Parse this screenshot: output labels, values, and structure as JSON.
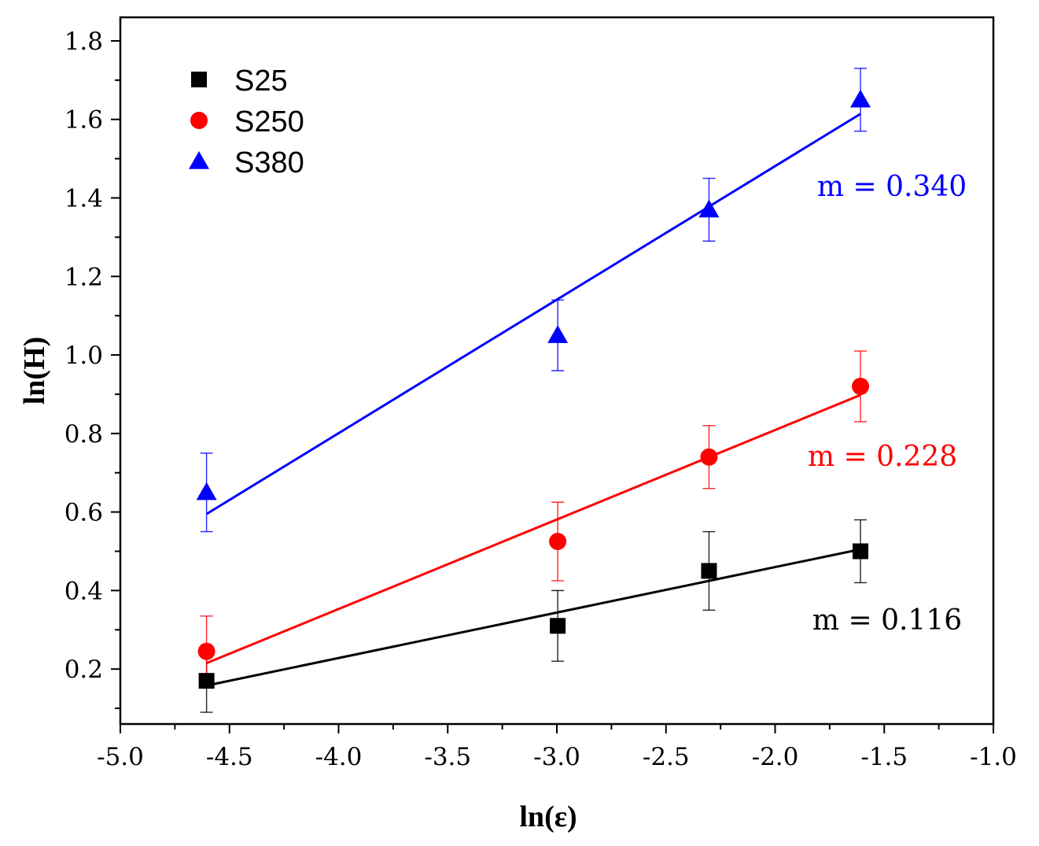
{
  "chart_data": {
    "type": "scatter",
    "title": "",
    "xlabel": "ln(ε)",
    "ylabel": "ln(H)",
    "xlim": [
      -5.0,
      -1.0
    ],
    "ylim": [
      0.06,
      1.86
    ],
    "xticks": [
      -5.0,
      -4.5,
      -4.0,
      -3.5,
      -3.0,
      -2.5,
      -2.0,
      -1.5,
      -1.0
    ],
    "xtick_labels": [
      "-5.0",
      "-4.5",
      "-4.0",
      "-3.5",
      "-3.0",
      "-2.5",
      "-2.0",
      "-1.5",
      "-1.0"
    ],
    "yticks": [
      0.2,
      0.4,
      0.6,
      0.8,
      1.0,
      1.2,
      1.4,
      1.6,
      1.8
    ],
    "ytick_labels": [
      "0.2",
      "0.4",
      "0.6",
      "0.8",
      "1.0",
      "1.2",
      "1.4",
      "1.6",
      "1.8"
    ],
    "grid": false,
    "legend_position": "top-left",
    "series": [
      {
        "name": "S25",
        "color": "#000000",
        "marker": "square",
        "x": [
          -4.605,
          -2.996,
          -2.303,
          -1.609
        ],
        "y": [
          0.17,
          0.31,
          0.45,
          0.5
        ],
        "error": [
          0.08,
          0.09,
          0.1,
          0.08
        ],
        "fit": {
          "x": [
            -4.605,
            -1.609
          ],
          "y": [
            0.158,
            0.505
          ]
        },
        "slope_label": "m = 0.116"
      },
      {
        "name": "S250",
        "color": "#ff0000",
        "marker": "circle",
        "x": [
          -4.605,
          -2.996,
          -2.303,
          -1.609
        ],
        "y": [
          0.245,
          0.525,
          0.74,
          0.92
        ],
        "error": [
          0.09,
          0.1,
          0.08,
          0.09
        ],
        "fit": {
          "x": [
            -4.605,
            -1.609
          ],
          "y": [
            0.215,
            0.898
          ]
        },
        "slope_label": "m = 0.228"
      },
      {
        "name": "S380",
        "color": "#0000ff",
        "marker": "triangle",
        "x": [
          -4.605,
          -2.996,
          -2.303,
          -1.609
        ],
        "y": [
          0.65,
          1.05,
          1.37,
          1.65
        ],
        "error": [
          0.1,
          0.09,
          0.08,
          0.08
        ],
        "fit": {
          "x": [
            -4.605,
            -1.609
          ],
          "y": [
            0.595,
            1.614
          ]
        },
        "slope_label": "m = 0.340"
      }
    ]
  }
}
